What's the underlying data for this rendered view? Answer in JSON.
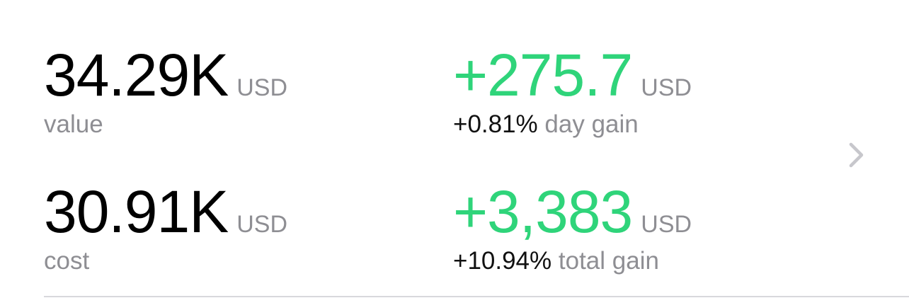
{
  "summary": {
    "value": {
      "amount": "34.29K",
      "currency": "USD",
      "label": "value"
    },
    "day_gain": {
      "amount": "+275.7",
      "currency": "USD",
      "percent": "+0.81%",
      "label": "day gain"
    },
    "cost": {
      "amount": "30.91K",
      "currency": "USD",
      "label": "cost"
    },
    "total_gain": {
      "amount": "+3,383",
      "currency": "USD",
      "percent": "+10.94%",
      "label": "total gain"
    },
    "chevron_icon": "chevron-right-icon"
  },
  "colors": {
    "gain_green": "#2fd47a",
    "secondary_gray": "#8e8e93",
    "primary_black": "#000000",
    "divider": "#d8d8dc"
  }
}
